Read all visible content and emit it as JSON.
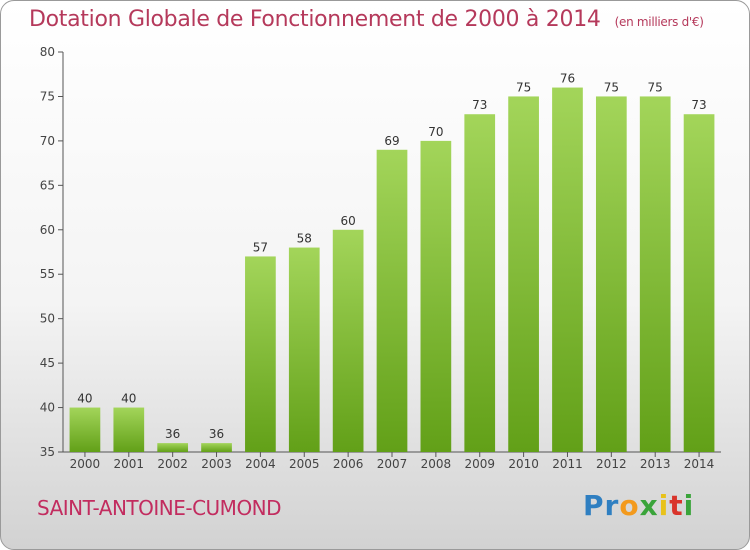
{
  "header": {
    "title": "Dotation Globale de Fonctionnement de 2000 à 2014",
    "unit_note": "(en milliers d'€)"
  },
  "footer": {
    "commune": "SAINT-ANTOINE-CUMOND",
    "logo_text": "Proxiti"
  },
  "colors": {
    "bar_light": "#a3d55a",
    "bar_dark": "#62a018",
    "title": "#b5395b",
    "commune": "#c22c5f"
  },
  "chart_data": {
    "type": "bar",
    "title": "Dotation Globale de Fonctionnement de 2000 à 2014",
    "subtitle": "(en milliers d'€)",
    "categories": [
      "2000",
      "2001",
      "2002",
      "2003",
      "2004",
      "2005",
      "2006",
      "2007",
      "2008",
      "2009",
      "2010",
      "2011",
      "2012",
      "2013",
      "2014"
    ],
    "values": [
      40,
      40,
      36,
      36,
      57,
      58,
      60,
      69,
      70,
      73,
      75,
      76,
      75,
      75,
      73
    ],
    "ylim": [
      35,
      80
    ],
    "yticks": [
      35,
      40,
      45,
      50,
      55,
      60,
      65,
      70,
      75,
      80
    ],
    "xlabel": "",
    "ylabel": "",
    "grid": false,
    "data_labels": true
  }
}
